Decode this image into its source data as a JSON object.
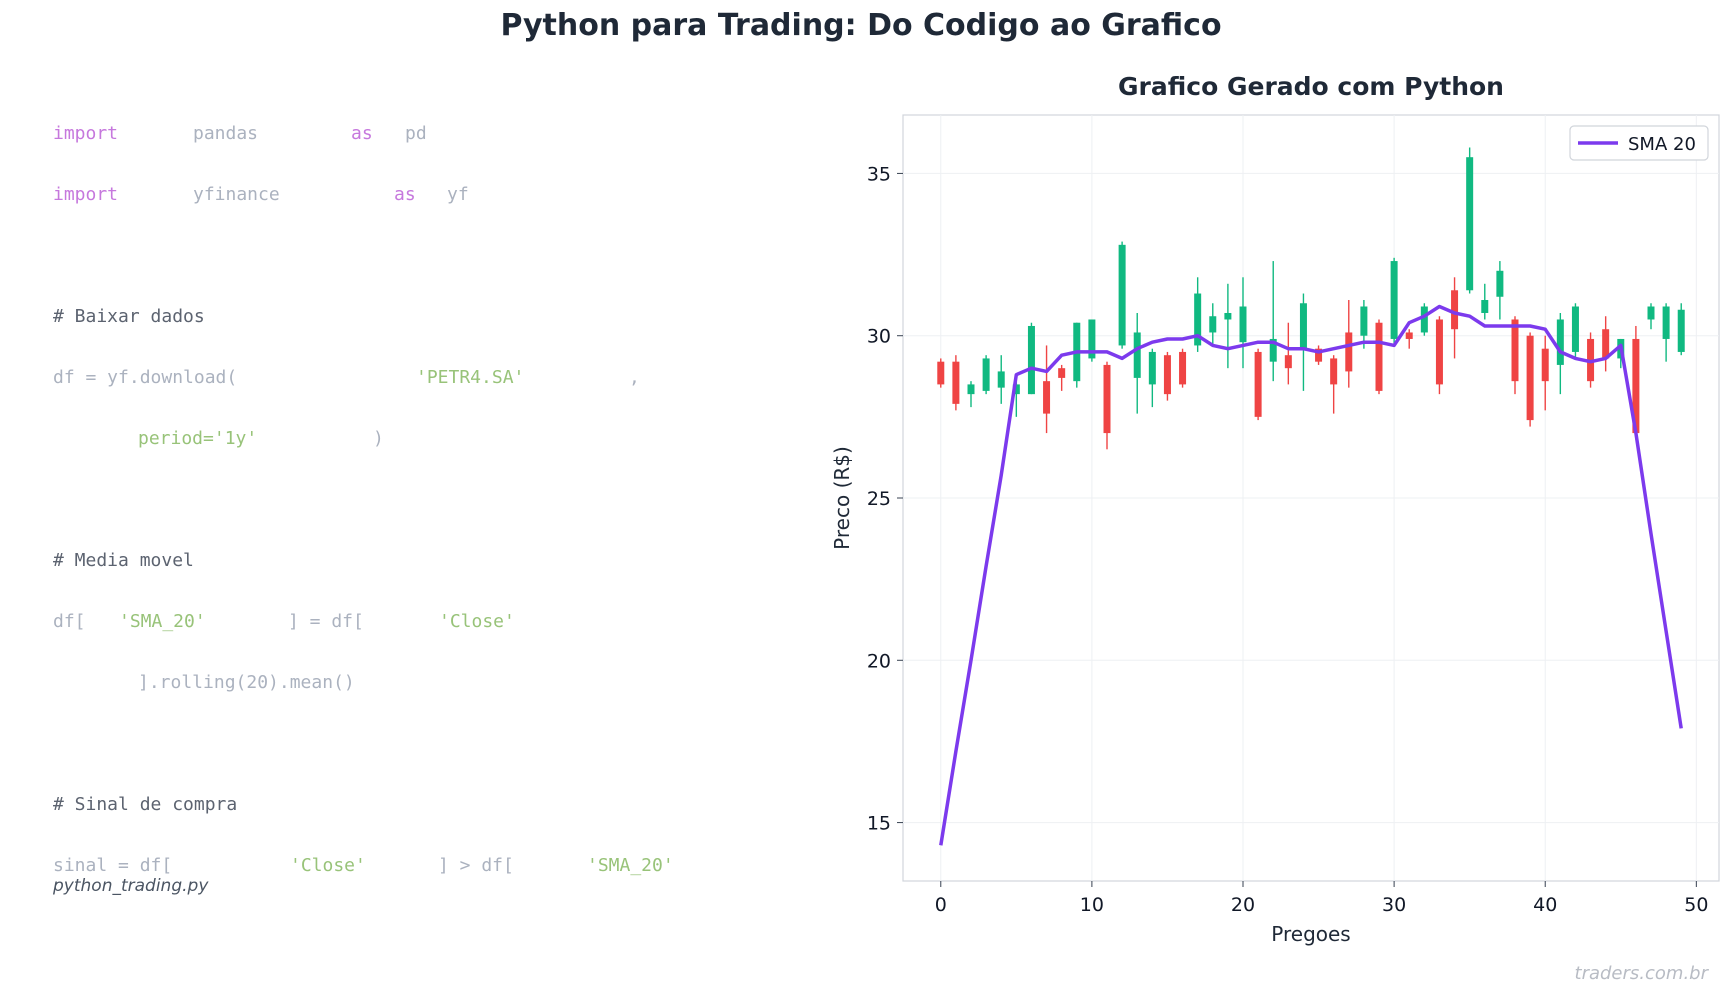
{
  "page": {
    "title": "Python para Trading: Do Codigo ao Grafico",
    "watermark": "traders.com.br"
  },
  "code": {
    "filename": "python_trading.py",
    "lines": [
      [
        {
          "t": "import",
          "c": "kw"
        },
        {
          "t": "pandas",
          "c": "id"
        },
        {
          "t": "as",
          "c": "kw"
        },
        {
          "t": "pd",
          "c": "id"
        }
      ],
      [
        {
          "t": "import",
          "c": "kw"
        },
        {
          "t": "yfinance",
          "c": "id"
        },
        {
          "t": "as",
          "c": "kw"
        },
        {
          "t": "yf",
          "c": "id"
        }
      ],
      [],
      [
        {
          "t": "# Baixar dados",
          "c": "cm"
        }
      ],
      [
        {
          "t": "df = yf.download(",
          "c": "id"
        },
        {
          "t": "'PETR4.SA'",
          "c": "str"
        },
        {
          "t": ",",
          "c": "id"
        }
      ],
      [
        {
          "t": "period='1y'",
          "c": "str"
        },
        {
          "t": ")",
          "c": "id"
        }
      ],
      [],
      [
        {
          "t": "# Media movel",
          "c": "cm"
        }
      ],
      [
        {
          "t": "df[",
          "c": "id"
        },
        {
          "t": "'SMA_20'",
          "c": "str"
        },
        {
          "t": "] = df[",
          "c": "id"
        },
        {
          "t": "'Close'",
          "c": "str"
        }
      ],
      [
        {
          "t": "].rolling(20).mean()",
          "c": "id"
        }
      ],
      [],
      [
        {
          "t": "# Sinal de compra",
          "c": "cm"
        }
      ],
      [
        {
          "t": "sinal = df[",
          "c": "id"
        },
        {
          "t": "'Close'",
          "c": "str"
        },
        {
          "t": "] > df[",
          "c": "id"
        },
        {
          "t": "'SMA_20'",
          "c": "str"
        }
      ]
    ]
  },
  "chart_data": {
    "type": "candlestick",
    "title": "Grafico Gerado com Python",
    "xlabel": "Pregoes",
    "ylabel": "Preco (R$)",
    "xlim": [
      -2.5,
      51.5
    ],
    "ylim": [
      13.2,
      36.8
    ],
    "xticks": [
      0,
      10,
      20,
      30,
      40,
      50
    ],
    "yticks": [
      15,
      20,
      25,
      30,
      35
    ],
    "grid": true,
    "legend": {
      "position": "top-right",
      "entries": [
        "SMA 20"
      ]
    },
    "colors": {
      "up": "#10b981",
      "down": "#ef4444",
      "sma": "#7c3aed"
    },
    "candles": [
      {
        "x": 0,
        "open": 29.2,
        "close": 28.5,
        "high": 29.3,
        "low": 28.4
      },
      {
        "x": 1,
        "open": 29.2,
        "close": 27.9,
        "high": 29.4,
        "low": 27.7
      },
      {
        "x": 2,
        "open": 28.2,
        "close": 28.5,
        "high": 28.6,
        "low": 27.8
      },
      {
        "x": 3,
        "open": 28.3,
        "close": 29.3,
        "high": 29.4,
        "low": 28.2
      },
      {
        "x": 4,
        "open": 28.4,
        "close": 28.9,
        "high": 29.4,
        "low": 27.9
      },
      {
        "x": 5,
        "open": 28.2,
        "close": 28.5,
        "high": 28.6,
        "low": 27.5
      },
      {
        "x": 6,
        "open": 28.2,
        "close": 30.3,
        "high": 30.4,
        "low": 28.2
      },
      {
        "x": 7,
        "open": 28.6,
        "close": 27.6,
        "high": 29.7,
        "low": 27.0
      },
      {
        "x": 8,
        "open": 29.0,
        "close": 28.7,
        "high": 29.1,
        "low": 28.3
      },
      {
        "x": 9,
        "open": 28.6,
        "close": 30.4,
        "high": 30.4,
        "low": 28.4
      },
      {
        "x": 10,
        "open": 29.3,
        "close": 30.5,
        "high": 30.5,
        "low": 29.2
      },
      {
        "x": 11,
        "open": 29.1,
        "close": 27.0,
        "high": 29.2,
        "low": 26.5
      },
      {
        "x": 12,
        "open": 29.7,
        "close": 32.8,
        "high": 32.9,
        "low": 29.6
      },
      {
        "x": 13,
        "open": 28.7,
        "close": 30.1,
        "high": 30.7,
        "low": 27.6
      },
      {
        "x": 14,
        "open": 28.5,
        "close": 29.5,
        "high": 29.6,
        "low": 27.8
      },
      {
        "x": 15,
        "open": 29.4,
        "close": 28.2,
        "high": 29.5,
        "low": 28.0
      },
      {
        "x": 16,
        "open": 29.5,
        "close": 28.5,
        "high": 29.6,
        "low": 28.4
      },
      {
        "x": 17,
        "open": 29.7,
        "close": 31.3,
        "high": 31.8,
        "low": 29.5
      },
      {
        "x": 18,
        "open": 30.1,
        "close": 30.6,
        "high": 31.0,
        "low": 29.7
      },
      {
        "x": 19,
        "open": 30.5,
        "close": 30.7,
        "high": 31.6,
        "low": 29.0
      },
      {
        "x": 20,
        "open": 29.8,
        "close": 30.9,
        "high": 31.8,
        "low": 29.0
      },
      {
        "x": 21,
        "open": 29.5,
        "close": 27.5,
        "high": 29.6,
        "low": 27.4
      },
      {
        "x": 22,
        "open": 29.2,
        "close": 29.9,
        "high": 32.3,
        "low": 28.6
      },
      {
        "x": 23,
        "open": 29.4,
        "close": 29.0,
        "high": 30.4,
        "low": 28.5
      },
      {
        "x": 24,
        "open": 29.6,
        "close": 31.0,
        "high": 31.3,
        "low": 28.3
      },
      {
        "x": 25,
        "open": 29.6,
        "close": 29.2,
        "high": 29.7,
        "low": 29.1
      },
      {
        "x": 26,
        "open": 29.3,
        "close": 28.5,
        "high": 29.4,
        "low": 27.6
      },
      {
        "x": 27,
        "open": 30.1,
        "close": 28.9,
        "high": 31.1,
        "low": 28.4
      },
      {
        "x": 28,
        "open": 30.0,
        "close": 30.9,
        "high": 31.1,
        "low": 29.6
      },
      {
        "x": 29,
        "open": 30.4,
        "close": 28.3,
        "high": 30.5,
        "low": 28.2
      },
      {
        "x": 30,
        "open": 29.9,
        "close": 32.3,
        "high": 32.4,
        "low": 29.7
      },
      {
        "x": 31,
        "open": 30.1,
        "close": 29.9,
        "high": 30.2,
        "low": 29.6
      },
      {
        "x": 32,
        "open": 30.1,
        "close": 30.9,
        "high": 31.0,
        "low": 30.0
      },
      {
        "x": 33,
        "open": 30.5,
        "close": 28.5,
        "high": 30.6,
        "low": 28.2
      },
      {
        "x": 34,
        "open": 31.4,
        "close": 30.2,
        "high": 31.8,
        "low": 29.3
      },
      {
        "x": 35,
        "open": 31.4,
        "close": 35.5,
        "high": 35.8,
        "low": 31.3
      },
      {
        "x": 36,
        "open": 30.7,
        "close": 31.1,
        "high": 31.6,
        "low": 30.5
      },
      {
        "x": 37,
        "open": 31.2,
        "close": 32.0,
        "high": 32.3,
        "low": 30.5
      },
      {
        "x": 38,
        "open": 30.5,
        "close": 28.6,
        "high": 30.6,
        "low": 28.2
      },
      {
        "x": 39,
        "open": 30.0,
        "close": 27.4,
        "high": 30.1,
        "low": 27.2
      },
      {
        "x": 40,
        "open": 29.6,
        "close": 28.6,
        "high": 30.0,
        "low": 27.7
      },
      {
        "x": 41,
        "open": 29.1,
        "close": 30.5,
        "high": 30.7,
        "low": 28.2
      },
      {
        "x": 42,
        "open": 29.5,
        "close": 30.9,
        "high": 31.0,
        "low": 29.3
      },
      {
        "x": 43,
        "open": 29.9,
        "close": 28.6,
        "high": 30.1,
        "low": 28.4
      },
      {
        "x": 44,
        "open": 30.2,
        "close": 29.3,
        "high": 30.6,
        "low": 28.9
      },
      {
        "x": 45,
        "open": 29.3,
        "close": 29.9,
        "high": 29.9,
        "low": 29.0
      },
      {
        "x": 46,
        "open": 29.9,
        "close": 27.0,
        "high": 30.3,
        "low": 26.8
      },
      {
        "x": 47,
        "open": 30.5,
        "close": 30.9,
        "high": 31.0,
        "low": 30.2
      },
      {
        "x": 48,
        "open": 29.9,
        "close": 30.9,
        "high": 31.0,
        "low": 29.2
      },
      {
        "x": 49,
        "open": 29.5,
        "close": 30.8,
        "high": 31.0,
        "low": 29.4
      }
    ],
    "series": [
      {
        "name": "SMA 20",
        "type": "line",
        "x": [
          0,
          1,
          2,
          3,
          4,
          5,
          6,
          7,
          8,
          9,
          10,
          11,
          12,
          13,
          14,
          15,
          16,
          17,
          18,
          19,
          20,
          21,
          22,
          23,
          24,
          25,
          26,
          27,
          28,
          29,
          30,
          31,
          32,
          33,
          34,
          35,
          36,
          37,
          38,
          39,
          40,
          41,
          42,
          43,
          44,
          45,
          46,
          47,
          48,
          49
        ],
        "values": [
          14.3,
          17.2,
          20.0,
          22.9,
          25.7,
          28.8,
          29.0,
          28.9,
          29.4,
          29.5,
          29.5,
          29.5,
          29.3,
          29.6,
          29.8,
          29.9,
          29.9,
          30.0,
          29.7,
          29.6,
          29.7,
          29.8,
          29.8,
          29.6,
          29.6,
          29.5,
          29.6,
          29.7,
          29.8,
          29.8,
          29.7,
          30.4,
          30.6,
          30.9,
          30.7,
          30.6,
          30.3,
          30.3,
          30.3,
          30.3,
          30.2,
          29.5,
          29.3,
          29.2,
          29.3,
          29.7,
          27.0,
          23.9,
          20.9,
          17.9
        ]
      }
    ]
  }
}
